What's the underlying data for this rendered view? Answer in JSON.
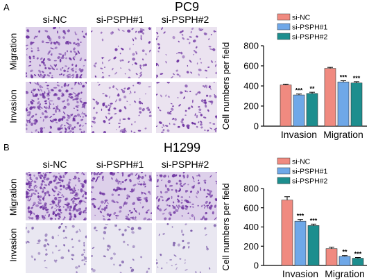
{
  "panel_a": {
    "letter": "A",
    "cell_line": "PC9",
    "columns": [
      "si-NC",
      "si-PSPH#1",
      "si-PSPH#2"
    ],
    "rows": [
      "Migration",
      "Invasion"
    ]
  },
  "panel_b": {
    "letter": "B",
    "cell_line": "H1299",
    "columns": [
      "si-NC",
      "si-PSPH#1",
      "si-PSPH#2"
    ],
    "rows": [
      "Migration",
      "Invasion"
    ]
  },
  "chart_data": [
    {
      "type": "bar",
      "title": "",
      "ylabel": "Cell numbers per field",
      "categories": [
        "Invasion",
        "Migration"
      ],
      "ylim": [
        0,
        800
      ],
      "yticks": [
        0,
        200,
        400,
        600,
        800
      ],
      "legend_position": "top-right",
      "series": [
        {
          "name": "si-NC",
          "color": "#f08a80",
          "values": [
            410,
            575
          ],
          "errors": [
            8,
            10
          ],
          "signif": [
            "",
            ""
          ]
        },
        {
          "name": "si-PSPH#1",
          "color": "#6fa8e8",
          "values": [
            310,
            440
          ],
          "errors": [
            10,
            12
          ],
          "signif": [
            "***",
            "***"
          ]
        },
        {
          "name": "si-PSPH#2",
          "color": "#1d8e8e",
          "values": [
            325,
            430
          ],
          "errors": [
            12,
            12
          ],
          "signif": [
            "**",
            "***"
          ]
        }
      ]
    },
    {
      "type": "bar",
      "title": "",
      "ylabel": "Cell numbers per field",
      "categories": [
        "Invasion",
        "Migration"
      ],
      "ylim": [
        0,
        800
      ],
      "yticks": [
        0,
        200,
        400,
        600,
        800
      ],
      "legend_position": "top-right",
      "series": [
        {
          "name": "si-NC",
          "color": "#f08a80",
          "values": [
            680,
            175
          ],
          "errors": [
            35,
            15
          ],
          "signif": [
            "",
            ""
          ]
        },
        {
          "name": "si-PSPH#1",
          "color": "#6fa8e8",
          "values": [
            460,
            95
          ],
          "errors": [
            18,
            8
          ],
          "signif": [
            "***",
            "**"
          ]
        },
        {
          "name": "si-PSPH#2",
          "color": "#1d8e8e",
          "values": [
            415,
            75
          ],
          "errors": [
            15,
            8
          ],
          "signif": [
            "***",
            "***"
          ]
        }
      ]
    }
  ]
}
